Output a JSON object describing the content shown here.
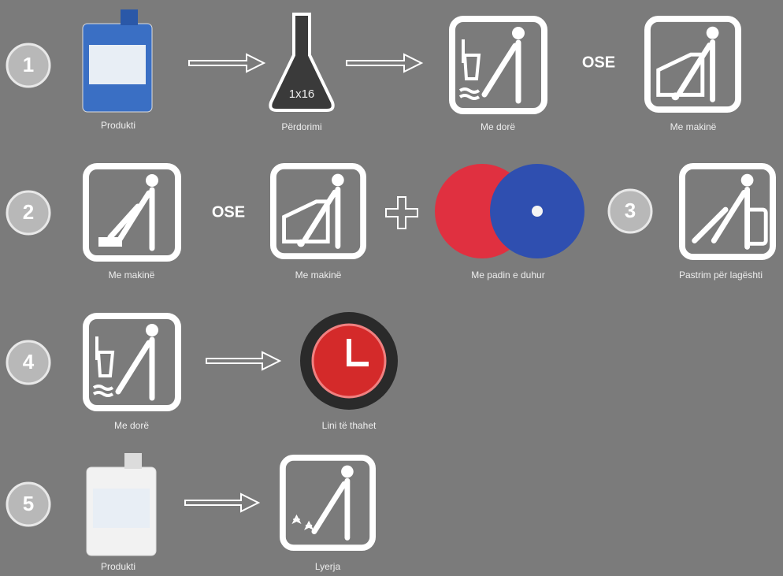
{
  "steps": [
    "1",
    "2",
    "3",
    "4",
    "5"
  ],
  "items": [
    {
      "label": "Produkti"
    },
    {
      "label": "Përdorimi",
      "measure": "1x16"
    },
    {
      "label": "Me dorë"
    },
    {
      "label": "Me makinë"
    },
    {
      "label": "Me makinë"
    },
    {
      "label": "Me makinë"
    },
    {
      "label": "Me padin e duhur"
    },
    {
      "label": "Pastrim për lagështi"
    },
    {
      "label": "Me dorë"
    },
    {
      "label": "Lini të thahet"
    },
    {
      "label": "Produkti"
    },
    {
      "label": "Lyerja"
    }
  ],
  "alternatives": [
    "OSE",
    "OSE"
  ]
}
